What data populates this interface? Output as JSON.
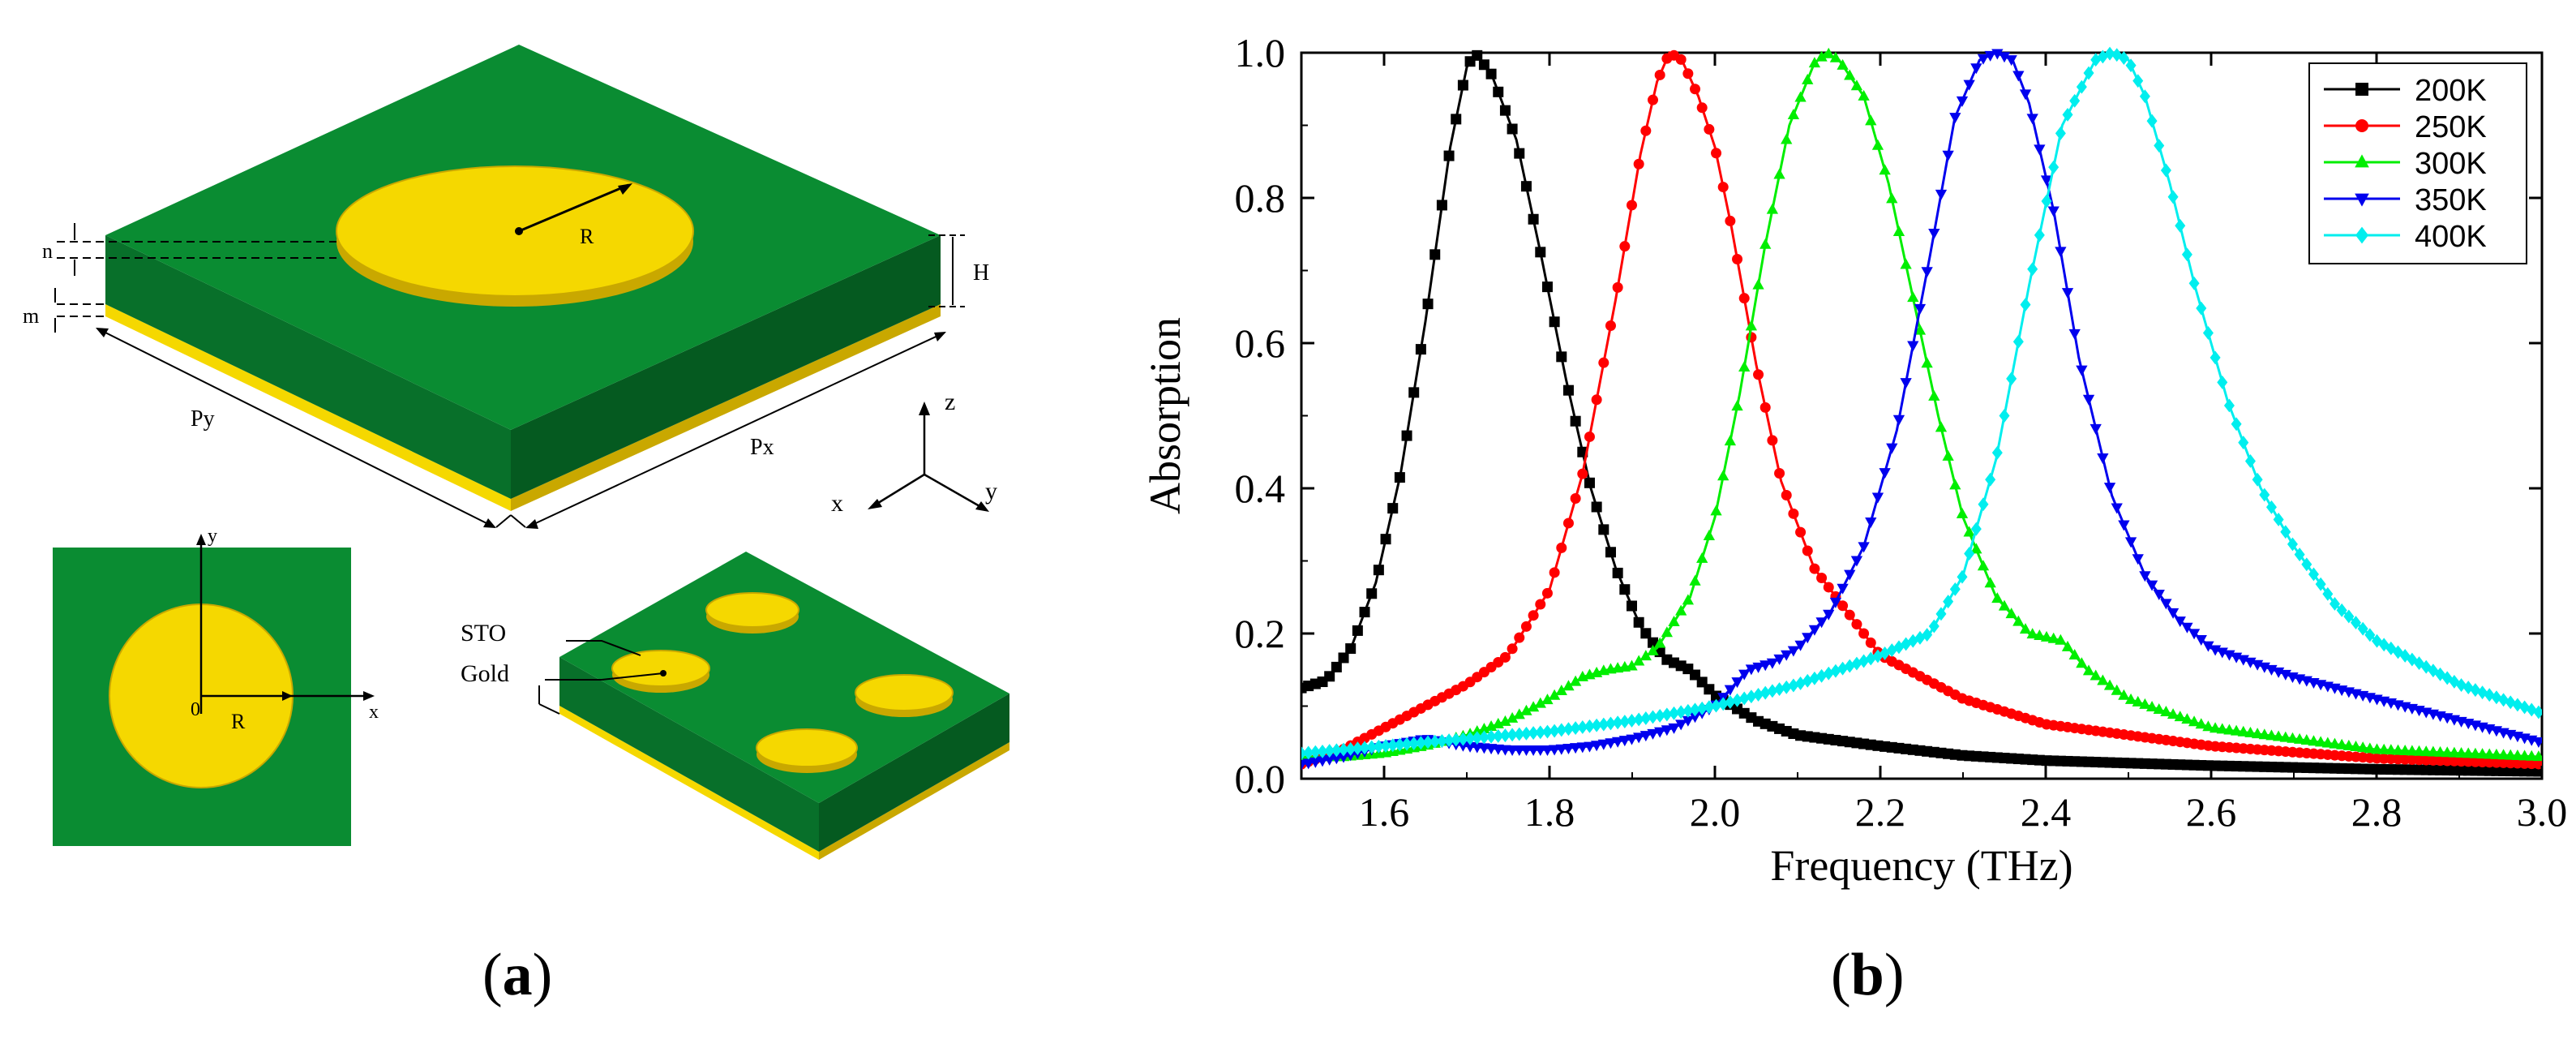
{
  "figure": {
    "panel_a": {
      "caption_open": "(",
      "caption_letter": "a",
      "caption_close": ")",
      "labels": {
        "n": "n",
        "m": "m",
        "H": "H",
        "R_top": "R",
        "Py": "Py",
        "Px": "Px",
        "axis_z": "z",
        "axis_x": "x",
        "axis_y": "y",
        "top_y": "y",
        "top_x": "x",
        "top_origin": "0",
        "top_R": "R",
        "sto": "STO",
        "gold": "Gold"
      },
      "colors": {
        "dielectric_top": "#0a8c32",
        "dielectric_left": "#08702a",
        "dielectric_right": "#055a20",
        "gold": "#f5d800",
        "gold_edge": "#c9a800"
      }
    },
    "panel_b": {
      "caption_open": "(",
      "caption_letter": "b",
      "caption_close": ")"
    }
  },
  "chart_data": {
    "type": "line",
    "title": "",
    "xlabel": "Frequency (THz)",
    "ylabel": "Absorption",
    "xlim": [
      1.5,
      3.0
    ],
    "ylim": [
      0.0,
      1.0
    ],
    "xticks": [
      "1.6",
      "1.8",
      "2.0",
      "2.2",
      "2.4",
      "2.6",
      "2.8",
      "3.0"
    ],
    "xtick_values": [
      1.6,
      1.8,
      2.0,
      2.2,
      2.4,
      2.6,
      2.8,
      3.0
    ],
    "yticks": [
      "0.0",
      "0.2",
      "0.4",
      "0.6",
      "0.8",
      "1.0"
    ],
    "ytick_values": [
      0.0,
      0.2,
      0.4,
      0.6,
      0.8,
      1.0
    ],
    "legend_position": "top-right",
    "series": [
      {
        "name": "200K",
        "color": "#000000",
        "marker": "square",
        "x": [
          1.5,
          1.53,
          1.56,
          1.59,
          1.62,
          1.65,
          1.68,
          1.7,
          1.71,
          1.73,
          1.76,
          1.79,
          1.82,
          1.85,
          1.88,
          1.91,
          1.94,
          1.97,
          2.0,
          2.05,
          2.1,
          2.2,
          2.3,
          2.4,
          2.6,
          2.8,
          3.0
        ],
        "y": [
          0.125,
          0.135,
          0.18,
          0.27,
          0.42,
          0.63,
          0.87,
          0.98,
          1.0,
          0.97,
          0.88,
          0.72,
          0.55,
          0.4,
          0.29,
          0.21,
          0.165,
          0.15,
          0.115,
          0.08,
          0.06,
          0.045,
          0.032,
          0.025,
          0.018,
          0.013,
          0.01
        ]
      },
      {
        "name": "250K",
        "color": "#ff0000",
        "marker": "circle",
        "x": [
          1.5,
          1.55,
          1.6,
          1.65,
          1.7,
          1.75,
          1.8,
          1.84,
          1.88,
          1.91,
          1.93,
          1.945,
          1.96,
          1.98,
          2.0,
          2.02,
          2.05,
          2.08,
          2.12,
          2.2,
          2.3,
          2.4,
          2.6,
          2.8,
          3.0
        ],
        "y": [
          0.02,
          0.04,
          0.07,
          0.1,
          0.13,
          0.17,
          0.26,
          0.42,
          0.66,
          0.86,
          0.96,
          1.0,
          0.99,
          0.94,
          0.87,
          0.76,
          0.57,
          0.41,
          0.29,
          0.17,
          0.11,
          0.075,
          0.045,
          0.028,
          0.02
        ]
      },
      {
        "name": "300K",
        "color": "#00ee00",
        "marker": "triangle-up",
        "x": [
          1.5,
          1.55,
          1.6,
          1.65,
          1.7,
          1.75,
          1.8,
          1.84,
          1.87,
          1.9,
          1.93,
          1.97,
          2.0,
          2.03,
          2.06,
          2.09,
          2.12,
          2.135,
          2.15,
          2.18,
          2.21,
          2.24,
          2.27,
          2.3,
          2.34,
          2.38,
          2.42,
          2.45,
          2.5,
          2.6,
          2.8,
          3.0
        ],
        "y": [
          0.03,
          0.03,
          0.035,
          0.045,
          0.06,
          0.08,
          0.11,
          0.14,
          0.15,
          0.155,
          0.18,
          0.25,
          0.36,
          0.53,
          0.73,
          0.9,
          0.985,
          1.0,
          0.99,
          0.94,
          0.82,
          0.66,
          0.5,
          0.36,
          0.25,
          0.2,
          0.19,
          0.15,
          0.11,
          0.07,
          0.04,
          0.03
        ]
      },
      {
        "name": "350K",
        "color": "#0000ee",
        "marker": "triangle-down",
        "x": [
          1.5,
          1.55,
          1.6,
          1.65,
          1.7,
          1.75,
          1.8,
          1.85,
          1.9,
          1.95,
          2.0,
          2.04,
          2.07,
          2.1,
          2.14,
          2.18,
          2.22,
          2.26,
          2.29,
          2.32,
          2.34,
          2.36,
          2.38,
          2.41,
          2.44,
          2.48,
          2.52,
          2.56,
          2.6,
          2.7,
          2.8,
          2.9,
          3.0
        ],
        "y": [
          0.02,
          0.03,
          0.045,
          0.055,
          0.045,
          0.04,
          0.04,
          0.045,
          0.055,
          0.07,
          0.1,
          0.15,
          0.16,
          0.18,
          0.23,
          0.32,
          0.48,
          0.72,
          0.91,
          0.99,
          1.0,
          0.99,
          0.93,
          0.78,
          0.58,
          0.39,
          0.28,
          0.22,
          0.18,
          0.14,
          0.11,
          0.08,
          0.05
        ]
      },
      {
        "name": "400K",
        "color": "#00eeee",
        "marker": "diamond",
        "x": [
          1.5,
          1.6,
          1.7,
          1.8,
          1.9,
          2.0,
          2.1,
          2.2,
          2.26,
          2.3,
          2.34,
          2.38,
          2.42,
          2.46,
          2.48,
          2.5,
          2.52,
          2.55,
          2.58,
          2.62,
          2.66,
          2.7,
          2.75,
          2.8,
          2.9,
          3.0
        ],
        "y": [
          0.035,
          0.045,
          0.055,
          0.065,
          0.08,
          0.1,
          0.13,
          0.17,
          0.2,
          0.28,
          0.44,
          0.68,
          0.9,
          0.99,
          1.0,
          0.99,
          0.94,
          0.82,
          0.68,
          0.52,
          0.4,
          0.32,
          0.24,
          0.19,
          0.13,
          0.09
        ]
      }
    ]
  }
}
